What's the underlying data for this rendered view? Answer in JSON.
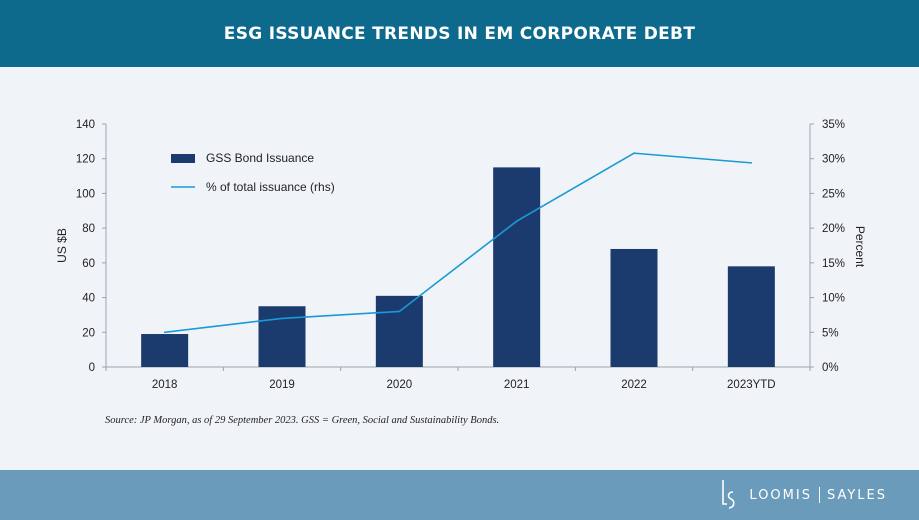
{
  "header": {
    "title": "ESG ISSUANCE TRENDS IN EM CORPORATE DEBT"
  },
  "chart_data": {
    "type": "bar",
    "categories": [
      "2018",
      "2019",
      "2020",
      "2021",
      "2022",
      "2023YTD"
    ],
    "series": [
      {
        "name": "GSS Bond Issuance",
        "kind": "bar",
        "axis": "left",
        "values": [
          19,
          35,
          41,
          115,
          68,
          58
        ],
        "color": "#1b3a6e"
      },
      {
        "name": "% of total issuance (rhs)",
        "kind": "line",
        "axis": "right",
        "values": [
          5.0,
          7.0,
          8.0,
          21.0,
          30.8,
          29.4
        ],
        "color": "#1a9ad6"
      }
    ],
    "ylabel": "US $B",
    "ylabel_right": "Percent",
    "ylim": [
      0,
      140
    ],
    "ylim_right": [
      0,
      35
    ],
    "yticks": [
      0,
      20,
      40,
      60,
      80,
      100,
      120,
      140
    ],
    "yticks_right": [
      "0%",
      "5%",
      "10%",
      "15%",
      "20%",
      "25%",
      "30%",
      "35%"
    ],
    "legend_position": "top-left",
    "grid": false
  },
  "source_note": "Source: JP Morgan, as of 29 September 2023. GSS = Green, Social and Sustainability Bonds.",
  "footer": {
    "brand_left": "LOOMIS",
    "brand_right": "SAYLES"
  }
}
